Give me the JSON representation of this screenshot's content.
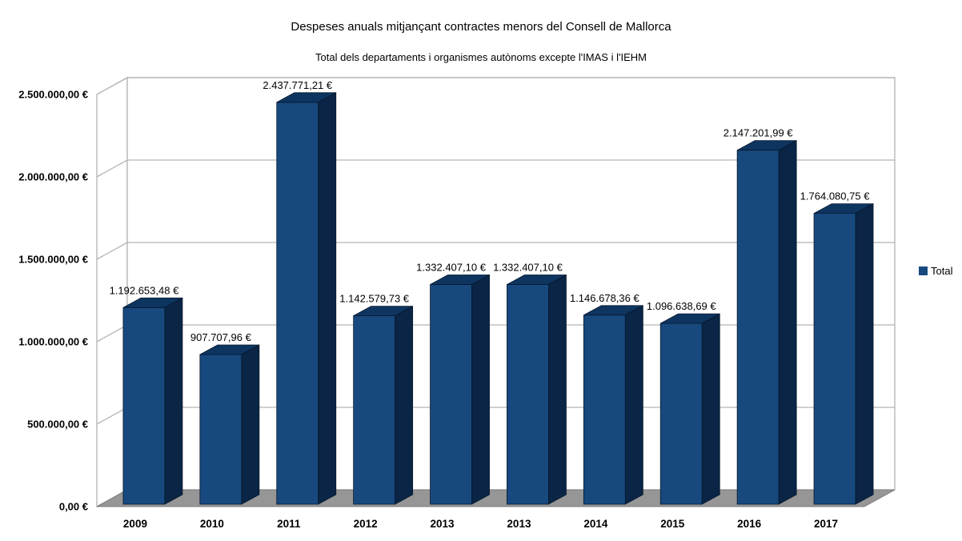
{
  "chart_data": {
    "type": "bar",
    "projection": "3d",
    "title": "Despeses anuals mitjançant contractes menors del Consell de Mallorca",
    "subtitle": "Total dels departaments i organismes autònoms excepte l'IMAS i l'IEHM",
    "categories": [
      "2009",
      "2010",
      "2011",
      "2012",
      "2013",
      "2013",
      "2014",
      "2015",
      "2016",
      "2017"
    ],
    "series": [
      {
        "name": "Total",
        "values": [
          1192653.48,
          907707.96,
          2437771.21,
          1142579.73,
          1332407.1,
          1332407.1,
          1146678.36,
          1096638.69,
          2147201.99,
          1764080.75
        ],
        "value_labels": [
          "1.192.653,48 €",
          "907.707,96 €",
          "2.437.771,21 €",
          "1.142.579,73 €",
          "1.332.407,10 €",
          "1.332.407,10 €",
          "1.146.678,36 €",
          "1.096.638,69 €",
          "2.147.201,99 €",
          "1.764.080,75 €"
        ]
      }
    ],
    "xlabel": "",
    "ylabel": "",
    "y_ticks": [
      "0,00 €",
      "500.000,00 €",
      "1.000.000,00 €",
      "1.500.000,00 €",
      "2.000.000,00 €",
      "2.500.000,00 €"
    ],
    "ylim": [
      0,
      2500000
    ],
    "grid": true,
    "legend_position": "right",
    "colors": {
      "bar_front": "#17497E",
      "bar_top": "#0E3560",
      "bar_side": "#0A2545",
      "bar_edge": "#06182E",
      "floor": "#969696",
      "floor_edge": "#7F7F7F",
      "wall_line": "#B3B3B3",
      "label_text": "#000000"
    }
  }
}
